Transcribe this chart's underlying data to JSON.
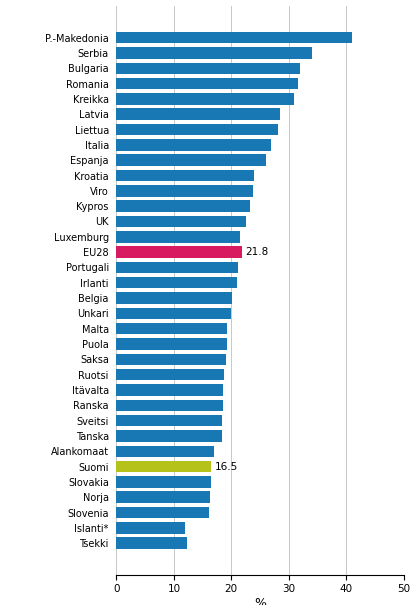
{
  "categories": [
    "P.-Makedonia",
    "Serbia",
    "Bulgaria",
    "Romania",
    "Kreikka",
    "Latvia",
    "Liettua",
    "Italia",
    "Espanja",
    "Kroatia",
    "Viro",
    "Kypros",
    "UK",
    "Luxemburg",
    "EU28",
    "Portugali",
    "Irlanti",
    "Belgia",
    "Unkari",
    "Malta",
    "Puola",
    "Saksa",
    "Ruotsi",
    "Itävalta",
    "Ranska",
    "Sveitsi",
    "Tanska",
    "Alankomaat",
    "Suomi",
    "Slovakia",
    "Norja",
    "Slovenia",
    "Islanti*",
    "Tsekki"
  ],
  "values": [
    41.0,
    34.0,
    32.0,
    31.7,
    31.0,
    28.5,
    28.2,
    26.9,
    26.1,
    24.0,
    23.7,
    23.3,
    22.5,
    21.5,
    21.8,
    21.2,
    21.0,
    20.2,
    19.9,
    19.3,
    19.2,
    19.1,
    18.8,
    18.5,
    18.5,
    18.4,
    18.4,
    17.0,
    16.5,
    16.5,
    16.3,
    16.2,
    12.0,
    12.2
  ],
  "bar_colors": [
    "#1878b4",
    "#1878b4",
    "#1878b4",
    "#1878b4",
    "#1878b4",
    "#1878b4",
    "#1878b4",
    "#1878b4",
    "#1878b4",
    "#1878b4",
    "#1878b4",
    "#1878b4",
    "#1878b4",
    "#1878b4",
    "#d81b60",
    "#1878b4",
    "#1878b4",
    "#1878b4",
    "#1878b4",
    "#1878b4",
    "#1878b4",
    "#1878b4",
    "#1878b4",
    "#1878b4",
    "#1878b4",
    "#1878b4",
    "#1878b4",
    "#1878b4",
    "#b5c21a",
    "#1878b4",
    "#1878b4",
    "#1878b4",
    "#1878b4",
    "#1878b4"
  ],
  "annotations": {
    "EU28": "21.8",
    "Suomi": "16.5"
  },
  "xlabel": "%",
  "xlim": [
    0,
    50
  ],
  "xticks": [
    0,
    10,
    20,
    30,
    40,
    50
  ],
  "blue_color": "#1878b4",
  "pink_color": "#d81b60",
  "green_color": "#b5c21a",
  "grid_color": "#c8c8c8",
  "bar_height": 0.75,
  "label_fontsize": 7.0,
  "tick_fontsize": 7.5,
  "annotation_fontsize": 7.5
}
